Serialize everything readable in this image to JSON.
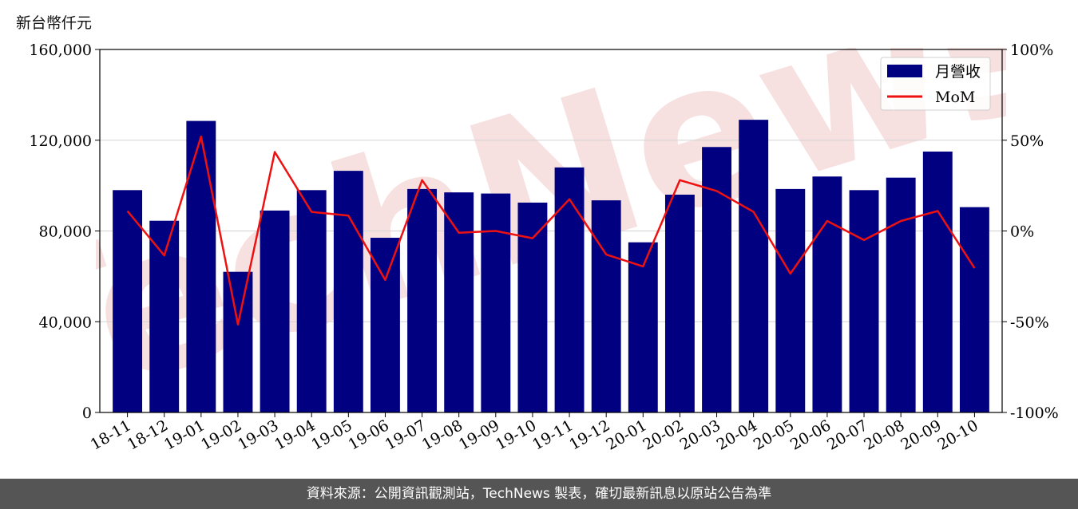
{
  "unit_label": "新台幣仟元",
  "footer_note": "資料來源：公開資訊觀測站，TechNews 製表，確切最新訊息以原站公告為準",
  "watermark_text": "TechNews",
  "colors": {
    "bar": "#000080",
    "line": "#ee1111",
    "grid": "#d3d3d3",
    "footer_bg": "#555555",
    "watermark": "#f2c8c8"
  },
  "chart_data": {
    "type": "bar",
    "categories": [
      "18-11",
      "18-12",
      "19-01",
      "19-02",
      "19-03",
      "19-04",
      "19-05",
      "19-06",
      "19-07",
      "19-08",
      "19-09",
      "19-10",
      "19-11",
      "19-12",
      "20-01",
      "20-02",
      "20-03",
      "20-04",
      "20-05",
      "20-06",
      "20-07",
      "20-08",
      "20-09",
      "20-10"
    ],
    "series": [
      {
        "name": "月營收",
        "type": "bar",
        "axis": "left",
        "values": [
          98000,
          84500,
          128500,
          62000,
          89000,
          98000,
          106500,
          77000,
          98500,
          97000,
          96500,
          92500,
          108000,
          93500,
          75000,
          96000,
          117000,
          129000,
          98500,
          104000,
          98000,
          103500,
          115000,
          90500
        ]
      },
      {
        "name": "MoM",
        "type": "line",
        "axis": "right",
        "values": [
          11,
          -13.5,
          52,
          -51.5,
          43.5,
          10.5,
          8.5,
          -27,
          28,
          -1,
          0,
          -4,
          17.5,
          -13,
          -19.5,
          28,
          22,
          10.5,
          -23.5,
          5.5,
          -5,
          5.5,
          11,
          -20.5
        ]
      }
    ],
    "y_left": {
      "ylim": [
        0,
        160000
      ],
      "ticks": [
        0,
        40000,
        80000,
        120000,
        160000
      ],
      "tick_labels": [
        "0",
        "40,000",
        "80,000",
        "120,000",
        "160,000"
      ]
    },
    "y_right": {
      "ylim": [
        -100,
        100
      ],
      "ticks": [
        -100,
        -50,
        0,
        50,
        100
      ],
      "tick_labels": [
        "-100%",
        "-50%",
        "0%",
        "50%",
        "100%"
      ]
    },
    "grid": true,
    "legend_position": "top-right"
  }
}
